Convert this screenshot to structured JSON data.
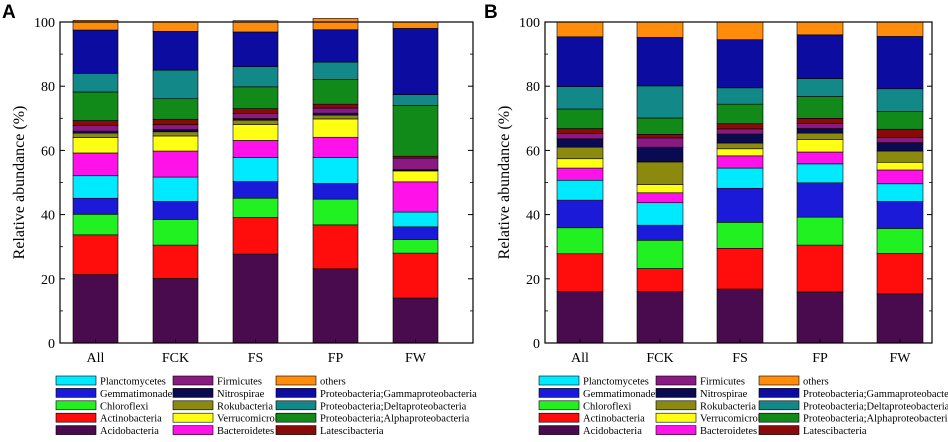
{
  "chart_data": [
    {
      "type": "bar",
      "stacked": true,
      "panel_label": "A",
      "title": "",
      "xlabel": "",
      "ylabel": "Relative abundance (%)",
      "ylim": [
        0,
        100
      ],
      "yticks": [
        0,
        20,
        40,
        60,
        80,
        100
      ],
      "categories": [
        "All",
        "FCK",
        "FS",
        "FP",
        "FW"
      ],
      "series": [
        {
          "name": "Acidobacteria",
          "values": [
            21.3,
            20.1,
            27.7,
            23.1,
            14.0
          ]
        },
        {
          "name": "Actinobacteria",
          "values": [
            12.4,
            10.4,
            11.4,
            13.7,
            14.0
          ]
        },
        {
          "name": "Chloroflexi",
          "values": [
            6.4,
            8.0,
            6.0,
            8.0,
            4.2
          ]
        },
        {
          "name": "Gemmatimonadetes",
          "values": [
            5.0,
            5.6,
            5.2,
            4.9,
            4.0
          ]
        },
        {
          "name": "Planctomycetes",
          "values": [
            7.0,
            7.6,
            7.5,
            8.1,
            4.6
          ]
        },
        {
          "name": "Bacteroidetes",
          "values": [
            7.1,
            8.1,
            5.3,
            6.3,
            9.4
          ]
        },
        {
          "name": "Verrucomicrobia",
          "values": [
            4.8,
            4.7,
            5.0,
            5.7,
            3.4
          ]
        },
        {
          "name": "Rokubacteria",
          "values": [
            1.4,
            1.3,
            1.3,
            1.2,
            0.2
          ]
        },
        {
          "name": "Nitrospirae",
          "values": [
            0.6,
            0.7,
            0.5,
            0.6,
            0.2
          ]
        },
        {
          "name": "Firmicutes",
          "values": [
            1.8,
            1.5,
            1.6,
            1.6,
            3.6
          ]
        },
        {
          "name": "Latescibacteria",
          "values": [
            1.5,
            1.7,
            1.5,
            1.2,
            0.6
          ]
        },
        {
          "name": "Proteobacteria;Alphaproteobacteria",
          "values": [
            8.9,
            6.4,
            6.8,
            7.7,
            15.8
          ]
        },
        {
          "name": "Proteobacteria;Deltaproteobacteria",
          "values": [
            5.8,
            8.9,
            6.3,
            5.4,
            3.4
          ]
        },
        {
          "name": "Proteobacteria;Gammaproteobacteria",
          "values": [
            13.5,
            12.1,
            10.8,
            10.1,
            20.6
          ]
        },
        {
          "name": "others",
          "values": [
            3.0,
            3.0,
            3.5,
            3.5,
            2.0
          ]
        }
      ],
      "legend_position": "bottom"
    },
    {
      "type": "bar",
      "stacked": true,
      "panel_label": "B",
      "title": "",
      "xlabel": "",
      "ylabel": "Relative abundance (%)",
      "ylim": [
        0,
        100
      ],
      "yticks": [
        0,
        20,
        40,
        60,
        80,
        100
      ],
      "categories": [
        "All",
        "FCK",
        "FS",
        "FP",
        "FW"
      ],
      "series": [
        {
          "name": "Acidobacteria",
          "values": [
            16.0,
            16.0,
            16.8,
            15.9,
            15.3
          ]
        },
        {
          "name": "Actinobacteria",
          "values": [
            11.8,
            7.2,
            12.7,
            14.6,
            12.6
          ]
        },
        {
          "name": "Chloroflexi",
          "values": [
            8.1,
            8.8,
            8.1,
            8.7,
            7.8
          ]
        },
        {
          "name": "Gemmatimonadetes",
          "values": [
            8.6,
            4.7,
            10.6,
            10.7,
            8.4
          ]
        },
        {
          "name": "Planctomycetes",
          "values": [
            6.2,
            7.0,
            6.3,
            5.9,
            5.5
          ]
        },
        {
          "name": "Bacteroidetes",
          "values": [
            3.8,
            3.1,
            3.8,
            3.7,
            4.3
          ]
        },
        {
          "name": "Verrucomicrobia",
          "values": [
            2.9,
            2.6,
            2.2,
            3.9,
            2.4
          ]
        },
        {
          "name": "Rokubacteria",
          "values": [
            3.6,
            7.0,
            1.8,
            2.0,
            3.5
          ]
        },
        {
          "name": "Nitrospirae",
          "values": [
            2.6,
            4.6,
            2.8,
            1.4,
            2.6
          ]
        },
        {
          "name": "Firmicutes",
          "values": [
            1.6,
            2.9,
            1.6,
            1.6,
            1.6
          ]
        },
        {
          "name": "Latescibacteria",
          "values": [
            1.6,
            1.1,
            1.6,
            1.6,
            2.6
          ]
        },
        {
          "name": "Proteobacteria;Alphaproteobacteria",
          "values": [
            6.1,
            5.1,
            6.1,
            6.8,
            5.5
          ]
        },
        {
          "name": "Proteobacteria;Deltaproteobacteria",
          "values": [
            7.0,
            10.0,
            5.1,
            5.6,
            7.1
          ]
        },
        {
          "name": "Proteobacteria;Gammaproteobacteria",
          "values": [
            15.5,
            15.1,
            15.0,
            13.6,
            16.3
          ]
        },
        {
          "name": "others",
          "values": [
            4.6,
            4.8,
            5.5,
            4.0,
            4.5
          ]
        }
      ],
      "legend_position": "bottom"
    }
  ],
  "legend": {
    "columns": [
      [
        "Planctomycetes",
        "Gemmatimonadetes",
        "Chloroflexi",
        "Actinobacteria",
        "Acidobacteria"
      ],
      [
        "Firmicutes",
        "Nitrospirae",
        "Rokubacteria",
        "Verrucomicrobia",
        "Bacteroidetes"
      ],
      [
        "others",
        "Proteobacteria;Gammaproteobacteria",
        "Proteobacteria;Deltaproteobacteria",
        "Proteobacteria;Alphaproteobacteria",
        "Latescibacteria"
      ]
    ]
  },
  "colors": {
    "Acidobacteria": "#4a0a4e",
    "Actinobacteria": "#ff0c0c",
    "Chloroflexi": "#21f021",
    "Gemmatimonadetes": "#1a1ad8",
    "Planctomycetes": "#00eaff",
    "Bacteroidetes": "#ff12ea",
    "Verrucomicrobia": "#ffff14",
    "Rokubacteria": "#8c8a0e",
    "Nitrospirae": "#0a0a52",
    "Firmicutes": "#8a1a82",
    "Latescibacteria": "#8a0a0a",
    "Proteobacteria;Alphaproteobacteria": "#118a1a",
    "Proteobacteria;Deltaproteobacteria": "#138888",
    "Proteobacteria;Gammaproteobacteria": "#0c0ca0",
    "others": "#ff8c0a"
  }
}
